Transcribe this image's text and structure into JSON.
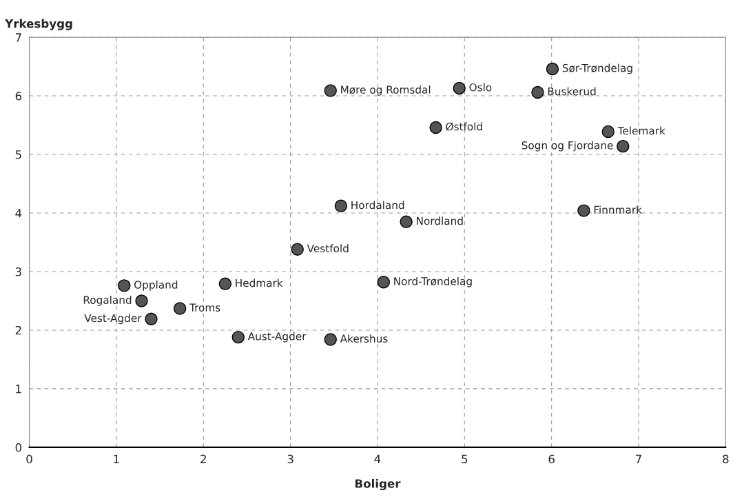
{
  "chart_data": {
    "type": "scatter",
    "xlabel": "Boliger",
    "ylabel": "Yrkesbygg",
    "x": [
      6.01,
      4.94,
      3.46,
      5.84,
      4.67,
      6.65,
      6.82,
      3.58,
      6.37,
      4.33,
      3.08,
      4.07,
      2.25,
      1.09,
      1.29,
      1.73,
      1.4,
      2.4,
      3.46
    ],
    "values": [
      6.46,
      6.13,
      6.09,
      6.06,
      5.46,
      5.39,
      5.14,
      4.12,
      4.04,
      3.85,
      3.38,
      2.82,
      2.79,
      2.76,
      2.5,
      2.37,
      2.19,
      1.88,
      1.84
    ],
    "annotations": [
      {
        "text": "Sør-Trøndelag",
        "x": 6.01,
        "y": 6.46
      },
      {
        "text": "Oslo",
        "x": 4.94,
        "y": 6.13
      },
      {
        "text": "Møre og Romsdal",
        "x": 3.46,
        "y": 6.09
      },
      {
        "text": "Buskerud",
        "x": 5.84,
        "y": 6.06
      },
      {
        "text": "Østfold",
        "x": 4.67,
        "y": 5.46
      },
      {
        "text": "Telemark",
        "x": 6.65,
        "y": 5.39
      },
      {
        "text": "Sogn og Fjordane",
        "x": 6.82,
        "y": 5.14
      },
      {
        "text": "Hordaland",
        "x": 3.58,
        "y": 4.12
      },
      {
        "text": "Finnmark",
        "x": 6.37,
        "y": 4.04
      },
      {
        "text": "Nordland",
        "x": 4.33,
        "y": 3.85
      },
      {
        "text": "Vestfold",
        "x": 3.08,
        "y": 3.38
      },
      {
        "text": "Nord-Trøndelag",
        "x": 4.07,
        "y": 2.82
      },
      {
        "text": "Hedmark",
        "x": 2.25,
        "y": 2.79
      },
      {
        "text": "Oppland",
        "x": 1.09,
        "y": 2.76
      },
      {
        "text": "Rogaland",
        "x": 1.29,
        "y": 2.5
      },
      {
        "text": "Troms",
        "x": 1.73,
        "y": 2.37
      },
      {
        "text": "Vest-Agder",
        "x": 1.4,
        "y": 2.19
      },
      {
        "text": "Aust-Agder",
        "x": 2.4,
        "y": 1.88
      },
      {
        "text": "Akershus",
        "x": 3.46,
        "y": 1.84
      }
    ],
    "color": "#555555",
    "marker": "circle",
    "grid": true,
    "xlim": [
      0,
      8
    ],
    "xticks": [
      0,
      1,
      2,
      3,
      4,
      5,
      6,
      7,
      8
    ],
    "ylim": [
      0,
      7
    ],
    "yticks": [
      0,
      1,
      2,
      3,
      4,
      5,
      6,
      7
    ]
  }
}
